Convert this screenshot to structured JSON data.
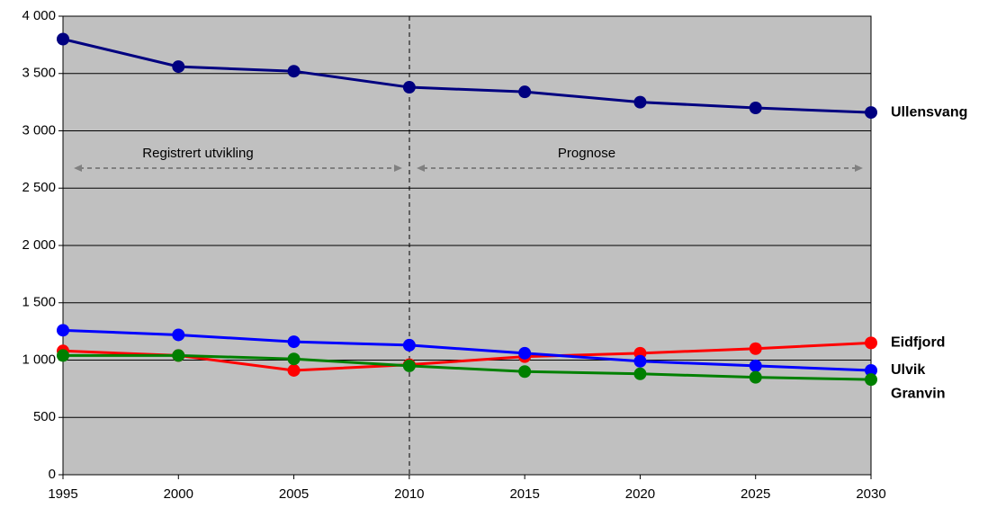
{
  "chart_data": {
    "type": "line",
    "annotations": [
      "Registrert utvikling",
      "Prognose"
    ],
    "x": [
      1995,
      2000,
      2005,
      2010,
      2015,
      2020,
      2025,
      2030
    ],
    "series": [
      {
        "name": "Ullensvang",
        "color": "#000080",
        "values": [
          3800,
          3560,
          3520,
          3380,
          3340,
          3250,
          3200,
          3160
        ]
      },
      {
        "name": "Eidfjord",
        "color": "#ff0000",
        "values": [
          1080,
          1040,
          910,
          960,
          1030,
          1060,
          1100,
          1150
        ]
      },
      {
        "name": "Ulvik",
        "color": "#0000ff",
        "values": [
          1260,
          1220,
          1160,
          1130,
          1060,
          990,
          950,
          910
        ]
      },
      {
        "name": "Granvin",
        "color": "#008000",
        "values": [
          1040,
          1040,
          1010,
          950,
          900,
          880,
          850,
          830
        ]
      }
    ],
    "xlim": [
      1995,
      2030
    ],
    "xticks": [
      1995,
      2000,
      2005,
      2010,
      2015,
      2020,
      2025,
      2030
    ],
    "ylim": [
      0,
      4000
    ],
    "yticks": [
      0,
      500,
      {
        "value": 1000,
        "label": "1 000"
      },
      {
        "value": 1500,
        "label": "1 500"
      },
      {
        "value": 2000,
        "label": "2 000"
      },
      {
        "value": 2500,
        "label": "2 500"
      },
      {
        "value": 3000,
        "label": "3 000"
      },
      {
        "value": 3500,
        "label": "3 500"
      },
      {
        "value": 4000,
        "label": "4 000"
      }
    ],
    "grid": true,
    "background": "#c0c0c0"
  }
}
